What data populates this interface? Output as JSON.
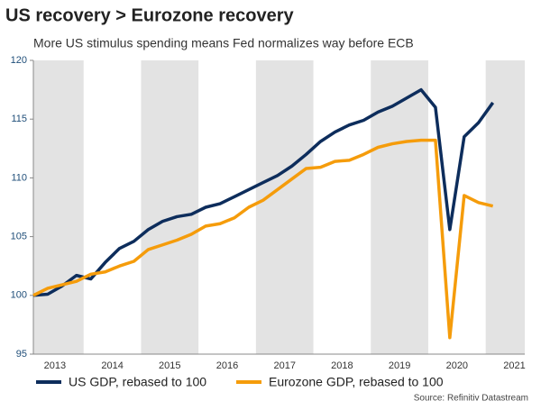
{
  "chart_data": {
    "type": "line",
    "title": "US recovery > Eurozone recovery",
    "subtitle": "More US stimulus spending means Fed normalizes way before ECB",
    "source": "Source: Refinitiv Datastream",
    "x": [
      2013.125,
      2013.375,
      2013.625,
      2013.875,
      2014.125,
      2014.375,
      2014.625,
      2014.875,
      2015.125,
      2015.375,
      2015.625,
      2015.875,
      2016.125,
      2016.375,
      2016.625,
      2016.875,
      2017.125,
      2017.375,
      2017.625,
      2017.875,
      2018.125,
      2018.375,
      2018.625,
      2018.875,
      2019.125,
      2019.375,
      2019.625,
      2019.875,
      2020.125,
      2020.375,
      2020.625,
      2020.875,
      2021.125
    ],
    "series": [
      {
        "name": "US GDP, rebased to 100",
        "color": "#0d2d5c",
        "values": [
          100,
          100.1,
          100.8,
          101.7,
          101.4,
          102.8,
          104.0,
          104.6,
          105.6,
          106.3,
          106.7,
          106.9,
          107.5,
          107.8,
          108.4,
          109.0,
          109.6,
          110.2,
          111.0,
          112.0,
          113.1,
          113.9,
          114.5,
          114.9,
          115.6,
          116.1,
          116.8,
          117.5,
          116.0,
          105.6,
          113.5,
          114.7,
          116.4
        ]
      },
      {
        "name": "Eurozone GDP, rebased to 100",
        "color": "#f59c0b",
        "values": [
          100,
          100.6,
          100.9,
          101.2,
          101.8,
          102.0,
          102.5,
          102.9,
          103.9,
          104.3,
          104.7,
          105.2,
          105.9,
          106.1,
          106.6,
          107.5,
          108.1,
          109.0,
          109.9,
          110.8,
          110.9,
          111.4,
          111.5,
          112.0,
          112.6,
          112.9,
          113.1,
          113.2,
          113.2,
          96.4,
          108.5,
          107.9,
          107.6
        ]
      }
    ],
    "xlim": [
      2013.125,
      2021.68
    ],
    "xticks": [
      {
        "value": 2013.5,
        "label": "2013"
      },
      {
        "value": 2014.5,
        "label": "2014"
      },
      {
        "value": 2015.5,
        "label": "2015"
      },
      {
        "value": 2016.5,
        "label": "2016"
      },
      {
        "value": 2017.5,
        "label": "2017"
      },
      {
        "value": 2018.5,
        "label": "2018"
      },
      {
        "value": 2019.5,
        "label": "2019"
      },
      {
        "value": 2020.5,
        "label": "2020"
      },
      {
        "value": 2021.5,
        "label": "2021"
      }
    ],
    "ylim": [
      95,
      120
    ],
    "yticks": [
      95,
      100,
      105,
      110,
      115,
      120
    ]
  }
}
